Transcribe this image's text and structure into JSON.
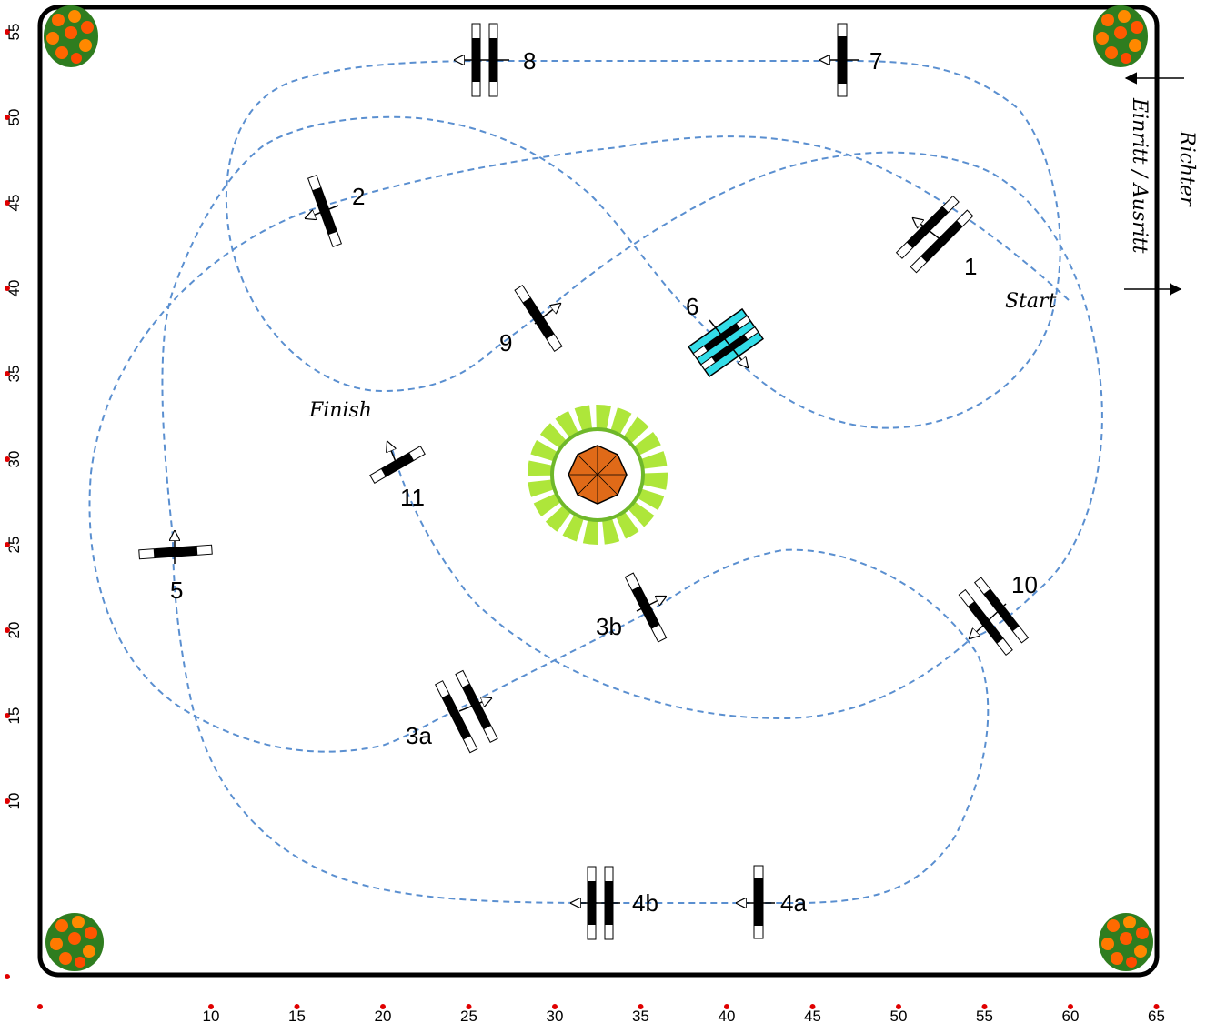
{
  "arena": {
    "entrance_label": "Einritt / Ausritt",
    "judge_label": "Richter",
    "start_label": "Start",
    "finish_label": "Finish"
  },
  "obstacles": [
    {
      "label": "1"
    },
    {
      "label": "2"
    },
    {
      "label": "3a"
    },
    {
      "label": "3b"
    },
    {
      "label": "4a"
    },
    {
      "label": "4b"
    },
    {
      "label": "5"
    },
    {
      "label": "6"
    },
    {
      "label": "7"
    },
    {
      "label": "8"
    },
    {
      "label": "9"
    },
    {
      "label": "10"
    },
    {
      "label": "11"
    }
  ],
  "axis": {
    "x_ticks": [
      "10",
      "15",
      "20",
      "25",
      "30",
      "35",
      "40",
      "45",
      "50",
      "55",
      "60",
      "65"
    ],
    "y_ticks": [
      "55",
      "50",
      "45",
      "40",
      "35",
      "30",
      "25",
      "20",
      "15",
      "10"
    ]
  },
  "colors": {
    "path": "#5a8fd0",
    "tick_dot": "#e00000",
    "water": "#33dde8",
    "umbrella": "#e06a18",
    "flowers": "#ff6a00",
    "plants": "#aee63a"
  }
}
